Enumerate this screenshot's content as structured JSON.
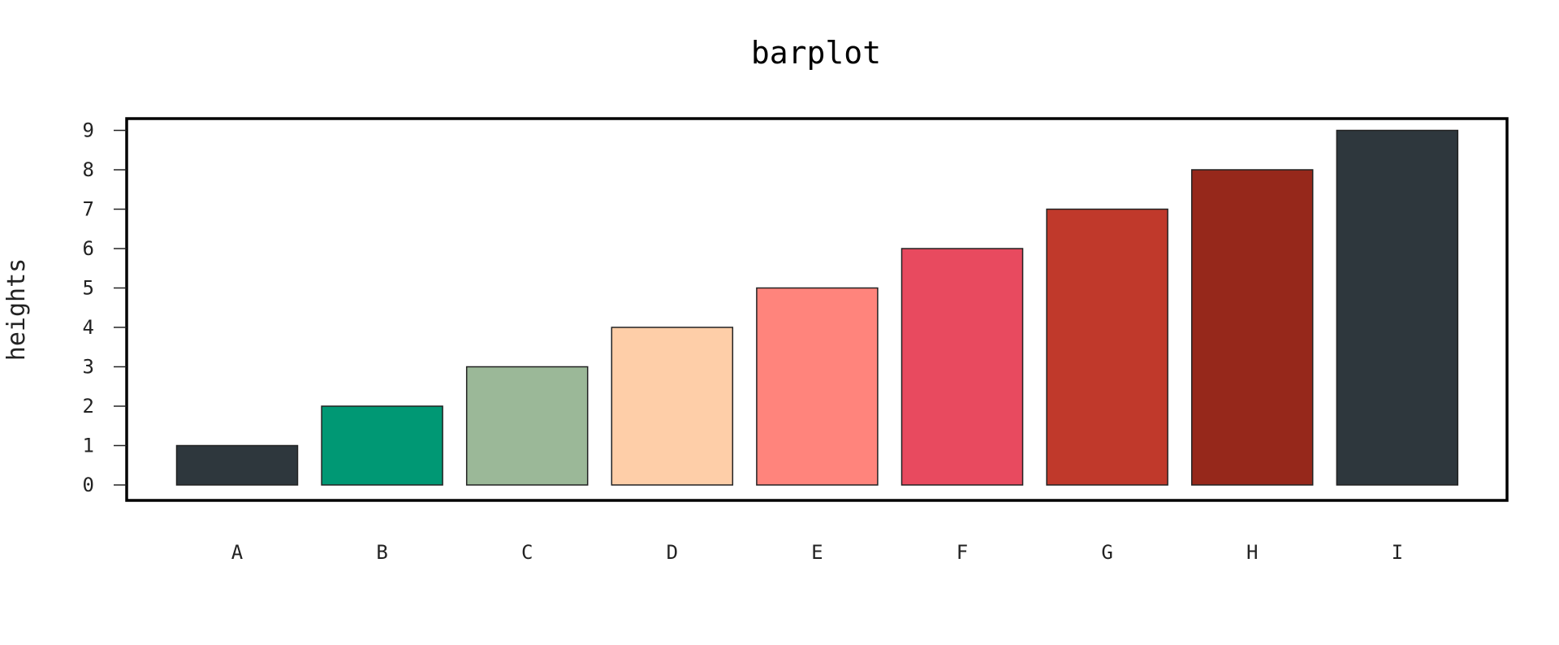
{
  "chart_data": {
    "type": "bar",
    "title": "barplot",
    "xlabel": "",
    "ylabel": "heights",
    "categories": [
      "A",
      "B",
      "C",
      "D",
      "E",
      "F",
      "G",
      "H",
      "I"
    ],
    "values": [
      1,
      2,
      3,
      4,
      5,
      6,
      7,
      8,
      9
    ],
    "colors": [
      "#2e373d",
      "#009874",
      "#9bb898",
      "#fecea8",
      "#ff847c",
      "#e84a5f",
      "#c0392b",
      "#96281b",
      "#2e373d"
    ],
    "ylim": [
      0,
      9
    ],
    "yticks": [
      "0",
      "1",
      "2",
      "3",
      "4",
      "5",
      "6",
      "7",
      "8",
      "9"
    ],
    "grid": false,
    "legend": "none"
  }
}
